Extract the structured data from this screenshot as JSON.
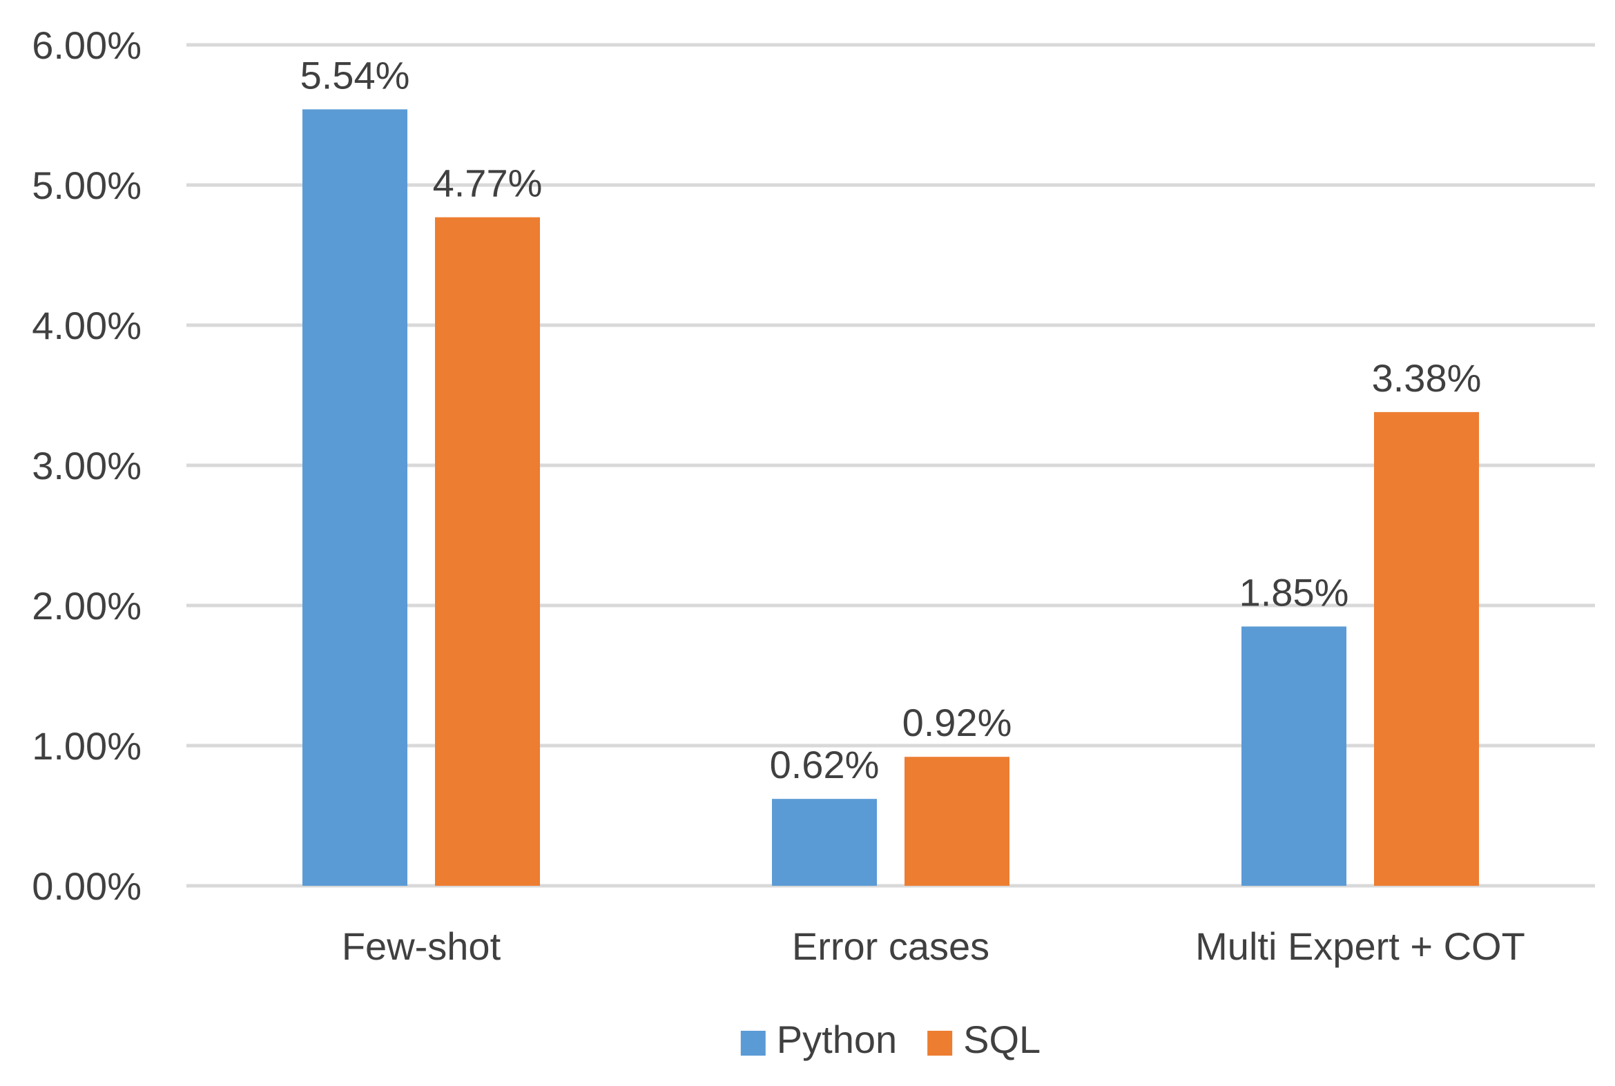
{
  "chart_data": {
    "type": "bar",
    "title": "",
    "xlabel": "",
    "ylabel": "",
    "categories": [
      "Few-shot",
      "Error cases",
      "Multi Expert + COT"
    ],
    "series": [
      {
        "name": "Python",
        "color": "#5b9bd5",
        "values": [
          5.54,
          0.62,
          1.85
        ],
        "labels": [
          "5.54%",
          "0.62%",
          "1.85%"
        ]
      },
      {
        "name": "SQL",
        "color": "#ed7d31",
        "values": [
          4.77,
          0.92,
          3.38
        ],
        "labels": [
          "4.77%",
          "0.92%",
          "3.38%"
        ]
      }
    ],
    "ylim": [
      0,
      6
    ],
    "yticks": [
      0,
      1,
      2,
      3,
      4,
      5,
      6
    ],
    "ytick_labels": [
      "0.00%",
      "1.00%",
      "2.00%",
      "3.00%",
      "4.00%",
      "5.00%",
      "6.00%"
    ],
    "grid": true,
    "legend_position": "bottom-center"
  }
}
